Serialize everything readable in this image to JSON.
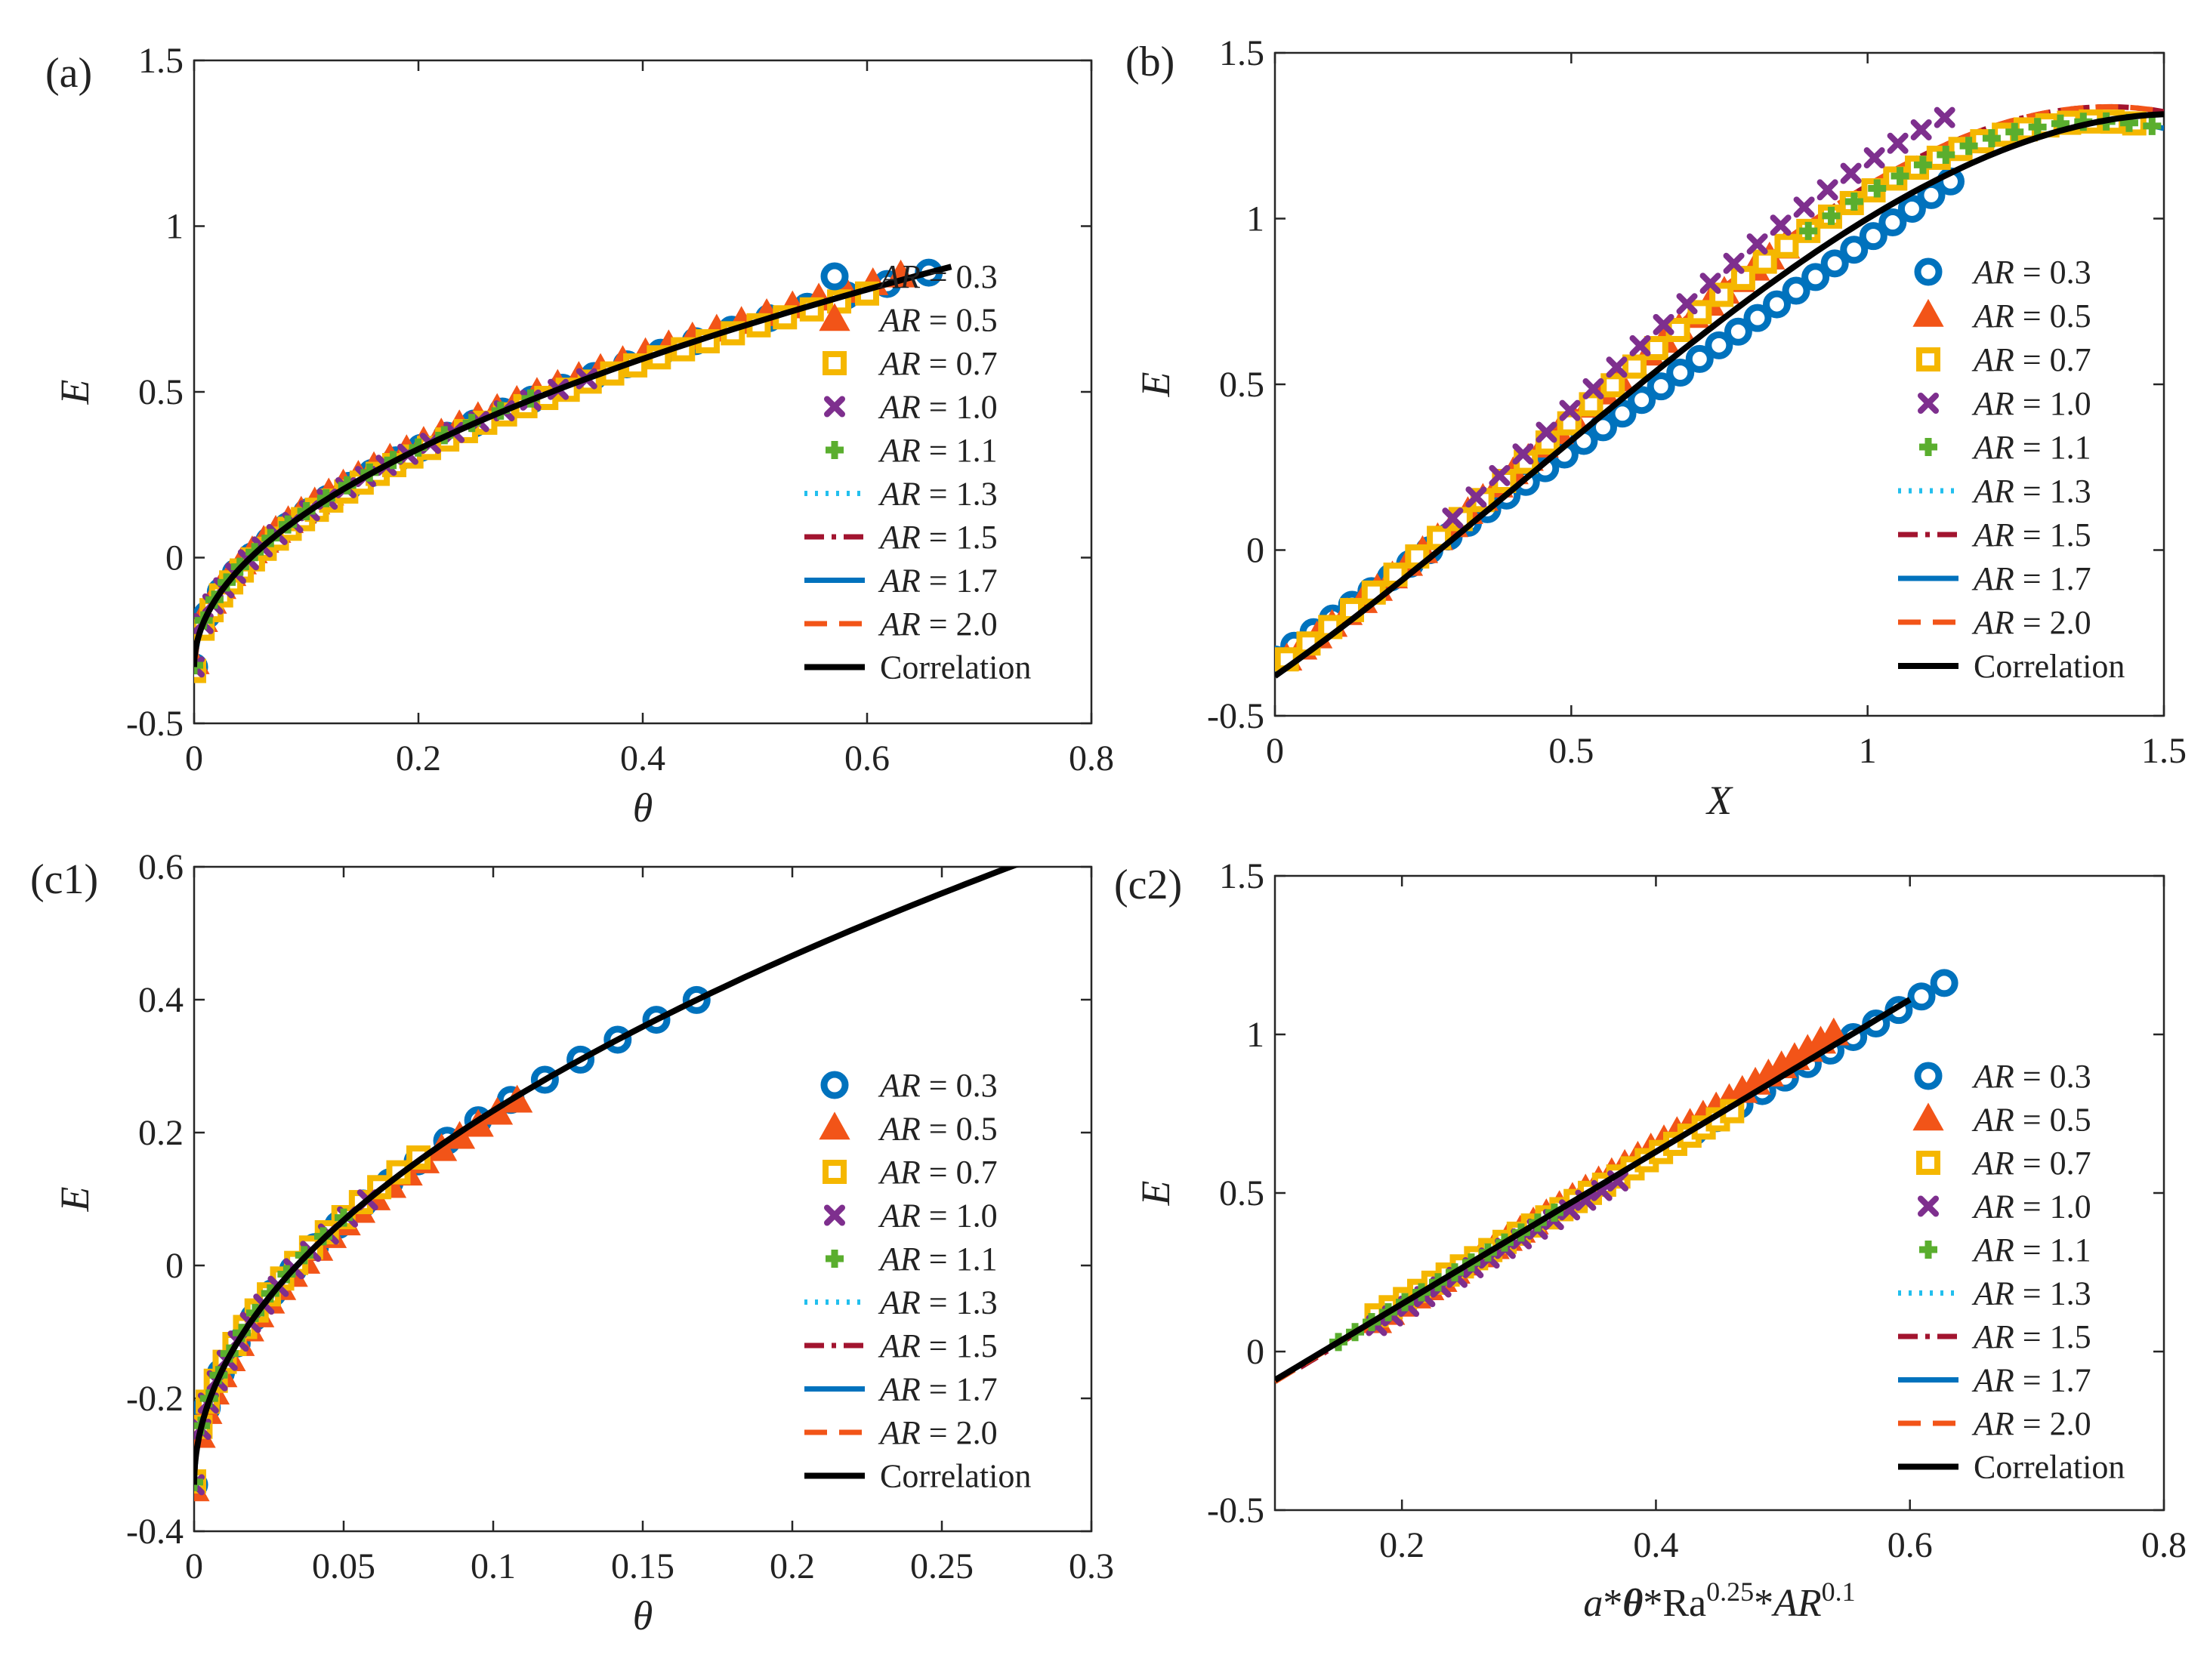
{
  "figure": {
    "legend_labels": [
      "AR = 0.3",
      "AR = 0.5",
      "AR = 0.7",
      "AR = 1.0",
      "AR = 1.1",
      "AR = 1.3",
      "AR = 1.5",
      "AR = 1.7",
      "AR = 2.0",
      "Correlation"
    ]
  },
  "colors": {
    "AR0.3": "#0072BD",
    "AR0.5": "#F25418",
    "AR0.7": "#F5B700",
    "AR1.0": "#7E2F8E",
    "AR1.1": "#5AAE2E",
    "AR1.3": "#22BFEE",
    "AR1.5": "#A2142F",
    "AR1.7": "#0072BD",
    "AR2.0": "#F25418",
    "correlation": "#000000"
  },
  "chart_data": [
    {
      "id": "a",
      "panel_label": "(a)",
      "type": "scatter",
      "xlabel": "θ",
      "ylabel": "E",
      "xlim": [
        0,
        0.8
      ],
      "ylim": [
        -0.5,
        1.5
      ],
      "xticks": [
        0,
        0.2,
        0.4,
        0.6,
        0.8
      ],
      "xtick_labels": [
        "0",
        "0.2",
        "0.4",
        "0.6",
        "0.8"
      ],
      "yticks": [
        -0.5,
        0,
        0.5,
        1,
        1.5
      ],
      "ytick_labels": [
        "-0.5",
        "0",
        "0.5",
        "1",
        "1.5"
      ],
      "legend": "right",
      "correlation": {
        "kind": "power",
        "a": 1.47,
        "p": 0.5,
        "c": -0.33,
        "x0": 0,
        "x1": 0.675
      },
      "series": [
        {
          "name": "AR = 0.3",
          "marker": "circle",
          "from": 0,
          "to": 0.655,
          "n": 28,
          "offset": 0.0
        },
        {
          "name": "AR = 0.5",
          "marker": "triangle",
          "from": 0,
          "to": 0.63,
          "n": 40,
          "offset": 0.012
        },
        {
          "name": "AR = 0.7",
          "marker": "square",
          "from": 0,
          "to": 0.6,
          "n": 38,
          "offset": -0.012
        },
        {
          "name": "AR = 1.0",
          "marker": "x",
          "from": 0,
          "to": 0.35,
          "n": 22,
          "offset": 0.0
        },
        {
          "name": "AR = 1.1",
          "marker": "plus",
          "from": 0,
          "to": 0.3,
          "n": 18,
          "offset": 0.005
        },
        {
          "name": "AR = 1.3",
          "line": "dotted",
          "from": 0,
          "to": 0.28
        },
        {
          "name": "AR = 1.5",
          "line": "dashdot",
          "from": 0,
          "to": 0.26
        },
        {
          "name": "AR = 1.7",
          "line": "solid",
          "from": 0,
          "to": 0.24
        },
        {
          "name": "AR = 2.0",
          "line": "dashed",
          "from": 0,
          "to": 0.22
        }
      ]
    },
    {
      "id": "b",
      "panel_label": "(b)",
      "type": "scatter",
      "xlabel": "X",
      "ylabel": "E",
      "xlim": [
        0,
        1.5
      ],
      "ylim": [
        -0.5,
        1.5
      ],
      "xticks": [
        0,
        0.5,
        1,
        1.5
      ],
      "xtick_labels": [
        "0",
        "0.5",
        "1",
        "1.5"
      ],
      "yticks": [
        -0.5,
        0,
        0.5,
        1,
        1.5
      ],
      "ytick_labels": [
        "-0.5",
        "0",
        "0.5",
        "1",
        "1.5"
      ],
      "legend": "right",
      "correlation": {
        "kind": "poly",
        "coef": [
          -0.38,
          1.25,
          0.55,
          -0.42
        ],
        "x0": 0,
        "x1": 1.5
      },
      "series": [
        {
          "name": "AR = 0.3",
          "marker": "circle",
          "kind": "linear",
          "a": -0.33,
          "b": 1.265,
          "from": 0,
          "to": 1.14,
          "n": 36
        },
        {
          "name": "AR = 0.5",
          "marker": "triangle",
          "kind": "poly",
          "coef": [
            -0.355,
            1.25,
            0.76,
            -0.58
          ],
          "from": 0.02,
          "to": 0.86,
          "n": 34
        },
        {
          "name": "AR = 0.7",
          "marker": "square",
          "kind": "poly",
          "coef": [
            -0.355,
            1.25,
            0.76,
            -0.58
          ],
          "from": 0.02,
          "to": 1.45,
          "n": 40
        },
        {
          "name": "AR = 1.0",
          "marker": "x",
          "kind": "poly",
          "coef": [
            -0.34,
            1.25,
            0.86,
            -0.6
          ],
          "from": 0.3,
          "to": 1.13,
          "n": 22
        },
        {
          "name": "AR = 1.1",
          "marker": "plus",
          "kind": "poly",
          "coef": [
            -0.355,
            1.25,
            0.76,
            -0.58
          ],
          "from": 0.9,
          "to": 1.48,
          "n": 16
        },
        {
          "name": "AR = 1.3",
          "line": "dotted",
          "kind": "poly",
          "coef": [
            -0.355,
            1.25,
            0.76,
            -0.58
          ],
          "from": 0,
          "to": 1.5
        },
        {
          "name": "AR = 1.5",
          "line": "dashdot",
          "kind": "poly",
          "coef": [
            -0.35,
            1.25,
            0.78,
            -0.58
          ],
          "from": 0,
          "to": 1.5
        },
        {
          "name": "AR = 1.7",
          "line": "solid",
          "kind": "poly",
          "coef": [
            -0.355,
            1.25,
            0.76,
            -0.58
          ],
          "from": 0,
          "to": 1.5
        },
        {
          "name": "AR = 2.0",
          "line": "dashed",
          "kind": "poly",
          "coef": [
            -0.35,
            1.25,
            0.78,
            -0.58
          ],
          "from": 0,
          "to": 1.5
        }
      ]
    },
    {
      "id": "c1",
      "panel_label": "(c1)",
      "type": "scatter",
      "xlabel": "θ",
      "ylabel": "E",
      "xlim": [
        0,
        0.3
      ],
      "ylim": [
        -0.4,
        0.6
      ],
      "xticks": [
        0,
        0.05,
        0.1,
        0.15,
        0.2,
        0.25,
        0.3
      ],
      "xtick_labels": [
        "0",
        "0.05",
        "0.1",
        "0.15",
        "0.2",
        "0.25",
        "0.3"
      ],
      "yticks": [
        -0.4,
        -0.2,
        0,
        0.2,
        0.4,
        0.6
      ],
      "ytick_labels": [
        "-0.4",
        "-0.2",
        "0",
        "0.2",
        "0.4",
        "0.6"
      ],
      "legend": "right",
      "correlation": {
        "kind": "power",
        "a": 1.78,
        "p": 0.5,
        "c": -0.33,
        "x0": 0,
        "x1": 0.276
      },
      "series": [
        {
          "name": "AR = 0.3",
          "marker": "circle",
          "from": 0,
          "to": 0.168,
          "n": 20,
          "offset": 0.0
        },
        {
          "name": "AR = 0.5",
          "marker": "triangle",
          "from": 0,
          "to": 0.108,
          "n": 26,
          "offset": -0.008
        },
        {
          "name": "AR = 0.7",
          "marker": "square",
          "from": 0,
          "to": 0.075,
          "n": 18,
          "offset": 0.005
        },
        {
          "name": "AR = 1.0",
          "marker": "x",
          "from": 0,
          "to": 0.058,
          "n": 14,
          "offset": 0.0
        },
        {
          "name": "AR = 1.1",
          "marker": "plus",
          "from": 0,
          "to": 0.05,
          "n": 12,
          "offset": 0.004
        },
        {
          "name": "AR = 1.3",
          "line": "dotted",
          "from": 0,
          "to": 0.05
        },
        {
          "name": "AR = 1.5",
          "line": "dashdot",
          "from": 0,
          "to": 0.045
        },
        {
          "name": "AR = 1.7",
          "line": "solid",
          "from": 0,
          "to": 0.04
        },
        {
          "name": "AR = 2.0",
          "line": "dashed",
          "from": 0,
          "to": 0.036
        }
      ]
    },
    {
      "id": "c2",
      "panel_label": "(c2)",
      "type": "scatter",
      "xlabel": "a*θ*Ra^0.25*AR^0.1",
      "ylabel": "E",
      "xlim": [
        0.1,
        0.8
      ],
      "ylim": [
        -0.5,
        1.5
      ],
      "xticks": [
        0.2,
        0.4,
        0.6,
        0.8
      ],
      "xtick_labels": [
        "0.2",
        "0.4",
        "0.6",
        "0.8"
      ],
      "yticks": [
        -0.5,
        0,
        0.5,
        1,
        1.5
      ],
      "ytick_labels": [
        "-0.5",
        "0",
        "0.5",
        "1",
        "1.5"
      ],
      "legend": "right",
      "correlation": {
        "kind": "linear",
        "a": -0.33,
        "b": 2.4,
        "x0": 0.1,
        "x1": 0.6
      },
      "series": [
        {
          "name": "AR = 0.3",
          "marker": "circle",
          "kind": "linear",
          "a": -0.33,
          "b": 2.38,
          "from": 0.43,
          "to": 0.627,
          "n": 12
        },
        {
          "name": "AR = 0.5",
          "marker": "triangle",
          "kind": "linear",
          "a": -0.36,
          "b": 2.52,
          "from": 0.18,
          "to": 0.54,
          "n": 36
        },
        {
          "name": "AR = 0.7",
          "marker": "square",
          "kind": "linear",
          "a": -0.3,
          "b": 2.3,
          "from": 0.18,
          "to": 0.46,
          "n": 26
        },
        {
          "name": "AR = 1.0",
          "marker": "x",
          "kind": "linear",
          "a": -0.35,
          "b": 2.4,
          "from": 0.18,
          "to": 0.37,
          "n": 16
        },
        {
          "name": "AR = 1.1",
          "marker": "plus",
          "kind": "linear",
          "a": -0.33,
          "b": 2.4,
          "from": 0.15,
          "to": 0.32,
          "n": 14
        },
        {
          "name": "AR = 1.3",
          "line": "dotted",
          "kind": "linear",
          "a": -0.33,
          "b": 2.4,
          "from": 0.12,
          "to": 0.35
        },
        {
          "name": "AR = 1.5",
          "line": "dashdot",
          "kind": "linear",
          "a": -0.34,
          "b": 2.42,
          "from": 0.12,
          "to": 0.33
        },
        {
          "name": "AR = 1.7",
          "line": "solid",
          "kind": "linear",
          "a": -0.33,
          "b": 2.4,
          "from": 0.12,
          "to": 0.3
        },
        {
          "name": "AR = 2.0",
          "line": "dashed",
          "kind": "linear",
          "a": -0.34,
          "b": 2.45,
          "from": 0.1,
          "to": 0.2
        }
      ]
    }
  ]
}
